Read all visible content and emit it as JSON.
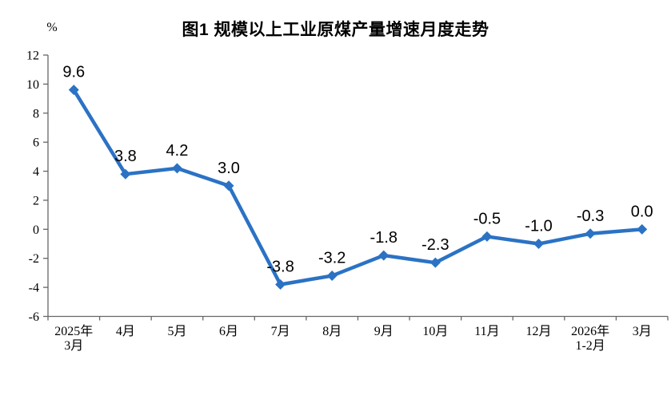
{
  "chart_data": {
    "type": "line",
    "title": "图1  规模以上工业原煤产量增速月度走势",
    "unit_label": "%",
    "categories": [
      "2025年\n3月",
      "4月",
      "5月",
      "6月",
      "7月",
      "8月",
      "9月",
      "10月",
      "11月",
      "12月",
      "2026年\n1-2月",
      "3月"
    ],
    "values": [
      9.6,
      3.8,
      4.2,
      3.0,
      -3.8,
      -3.2,
      -1.8,
      -2.3,
      -0.5,
      -1.0,
      -0.3,
      0.0
    ],
    "data_labels": [
      "9.6",
      "3.8",
      "4.2",
      "3.0",
      "-3.8",
      "-3.2",
      "-1.8",
      "-2.3",
      "-0.5",
      "-1.0",
      "-0.3",
      "0.0"
    ],
    "yticks": [
      12,
      10,
      8,
      6,
      4,
      2,
      0,
      -2,
      -4,
      -6
    ],
    "ylim": [
      -6,
      12
    ],
    "grid": false,
    "legend": "none",
    "marker": "diamond",
    "series_color": "#2B72C4",
    "axis_color": "#666666",
    "text_color": "#000000"
  }
}
